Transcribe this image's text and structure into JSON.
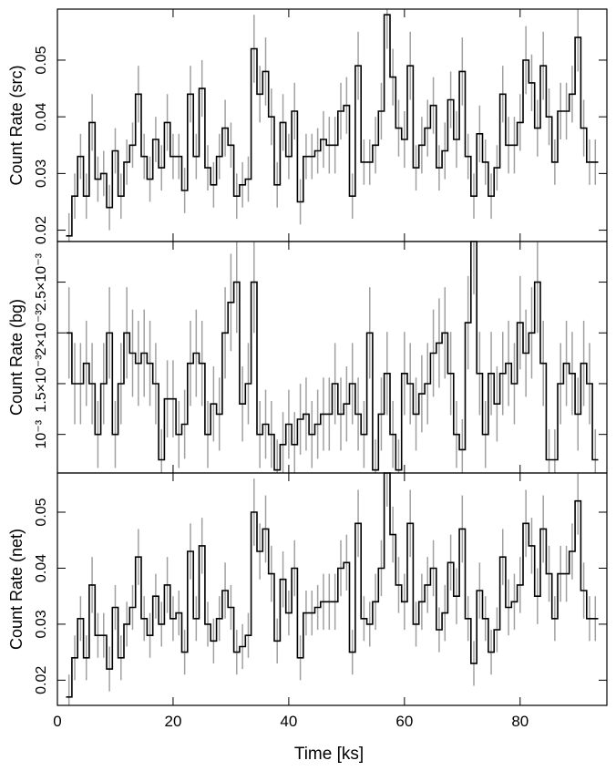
{
  "chart_data": [
    {
      "type": "line",
      "ylabel": "Count Rate (src)",
      "ylim": [
        0.018,
        0.059
      ],
      "yticks": [
        {
          "value": 0.02,
          "label": "0.02"
        },
        {
          "value": 0.03,
          "label": "0.03"
        },
        {
          "value": 0.04,
          "label": "0.04"
        },
        {
          "value": 0.05,
          "label": "0.05"
        }
      ],
      "bin_width": 1.0,
      "x": [
        2,
        3,
        4,
        5,
        6,
        7,
        8,
        9,
        10,
        11,
        12,
        13,
        14,
        15,
        16,
        17,
        18,
        19,
        20,
        21,
        22,
        23,
        24,
        25,
        26,
        27,
        28,
        29,
        30,
        31,
        32,
        33,
        34,
        35,
        36,
        37,
        38,
        39,
        40,
        41,
        42,
        43,
        44,
        45,
        46,
        47,
        48,
        49,
        50,
        51,
        52,
        53,
        54,
        55,
        56,
        57,
        58,
        59,
        60,
        61,
        62,
        63,
        64,
        65,
        66,
        67,
        68,
        69,
        70,
        71,
        72,
        73,
        74,
        75,
        76,
        77,
        78,
        79,
        80,
        81,
        82,
        83,
        84,
        85,
        86,
        87,
        88,
        89,
        90,
        91,
        92,
        93
      ],
      "values": [
        0.019,
        0.026,
        0.033,
        0.026,
        0.039,
        0.029,
        0.03,
        0.024,
        0.034,
        0.026,
        0.032,
        0.035,
        0.044,
        0.033,
        0.029,
        0.036,
        0.031,
        0.039,
        0.033,
        0.033,
        0.027,
        0.044,
        0.033,
        0.045,
        0.031,
        0.028,
        0.033,
        0.038,
        0.035,
        0.026,
        0.028,
        0.029,
        0.052,
        0.044,
        0.048,
        0.04,
        0.028,
        0.039,
        0.033,
        0.041,
        0.025,
        0.033,
        0.033,
        0.034,
        0.036,
        0.035,
        0.035,
        0.041,
        0.042,
        0.026,
        0.049,
        0.032,
        0.032,
        0.035,
        0.041,
        0.058,
        0.047,
        0.038,
        0.036,
        0.049,
        0.031,
        0.035,
        0.038,
        0.042,
        0.031,
        0.034,
        0.043,
        0.036,
        0.048,
        0.033,
        0.026,
        0.037,
        0.032,
        0.026,
        0.031,
        0.044,
        0.035,
        0.035,
        0.039,
        0.05,
        0.046,
        0.038,
        0.049,
        0.04,
        0.032,
        0.041,
        0.041,
        0.044,
        0.054,
        0.038,
        0.032,
        0.032
      ],
      "errors": [
        0.004,
        0.004,
        0.004,
        0.004,
        0.005,
        0.004,
        0.004,
        0.004,
        0.004,
        0.004,
        0.004,
        0.004,
        0.005,
        0.004,
        0.004,
        0.004,
        0.004,
        0.005,
        0.004,
        0.004,
        0.004,
        0.005,
        0.004,
        0.005,
        0.004,
        0.004,
        0.004,
        0.005,
        0.004,
        0.004,
        0.004,
        0.004,
        0.006,
        0.005,
        0.006,
        0.005,
        0.004,
        0.005,
        0.004,
        0.005,
        0.004,
        0.004,
        0.004,
        0.004,
        0.005,
        0.005,
        0.005,
        0.005,
        0.005,
        0.004,
        0.006,
        0.004,
        0.004,
        0.005,
        0.005,
        0.006,
        0.005,
        0.005,
        0.005,
        0.006,
        0.004,
        0.005,
        0.005,
        0.005,
        0.004,
        0.005,
        0.005,
        0.005,
        0.006,
        0.004,
        0.004,
        0.005,
        0.004,
        0.004,
        0.004,
        0.005,
        0.005,
        0.005,
        0.005,
        0.006,
        0.005,
        0.005,
        0.006,
        0.005,
        0.004,
        0.005,
        0.005,
        0.005,
        0.006,
        0.005,
        0.004,
        0.004
      ]
    },
    {
      "type": "line",
      "ylabel": "Count Rate (bg)",
      "ylim": [
        0.00062,
        0.0029
      ],
      "yticks": [
        {
          "value": 0.001,
          "label": "10⁻³"
        },
        {
          "value": 0.0015,
          "label": "1.5×10⁻³"
        },
        {
          "value": 0.002,
          "label": "2×10⁻³"
        },
        {
          "value": 0.0025,
          "label": "2.5×10⁻³"
        }
      ],
      "bin_width": 1.0,
      "x": [
        2,
        3,
        4,
        5,
        6,
        7,
        8,
        9,
        10,
        11,
        12,
        13,
        14,
        15,
        16,
        17,
        18,
        19,
        20,
        21,
        22,
        23,
        24,
        25,
        26,
        27,
        28,
        29,
        30,
        31,
        32,
        33,
        34,
        35,
        36,
        37,
        38,
        39,
        40,
        41,
        42,
        43,
        44,
        45,
        46,
        47,
        48,
        49,
        50,
        51,
        52,
        53,
        54,
        55,
        56,
        57,
        58,
        59,
        60,
        61,
        62,
        63,
        64,
        65,
        66,
        67,
        68,
        69,
        70,
        71,
        72,
        73,
        74,
        75,
        76,
        77,
        78,
        79,
        80,
        81,
        82,
        83,
        84,
        85,
        86,
        87,
        88,
        89,
        90,
        91,
        92,
        93
      ],
      "values": [
        0.002,
        0.0015,
        0.0015,
        0.0017,
        0.0015,
        0.001,
        0.0015,
        0.002,
        0.001,
        0.0015,
        0.002,
        0.0018,
        0.0017,
        0.0018,
        0.0017,
        0.0015,
        0.00075,
        0.00135,
        0.00135,
        0.001,
        0.0011,
        0.0017,
        0.0018,
        0.0017,
        0.001,
        0.0013,
        0.0012,
        0.002,
        0.0023,
        0.0025,
        0.0013,
        0.0015,
        0.0025,
        0.001,
        0.0011,
        0.001,
        0.00065,
        0.0009,
        0.0011,
        0.0009,
        0.00115,
        0.0012,
        0.001,
        0.0011,
        0.0012,
        0.0012,
        0.0015,
        0.0012,
        0.0013,
        0.0015,
        0.0012,
        0.001,
        0.002,
        0.00065,
        0.0012,
        0.0016,
        0.001,
        0.00065,
        0.0016,
        0.0015,
        0.0012,
        0.0014,
        0.0015,
        0.0018,
        0.0019,
        0.002,
        0.0016,
        0.001,
        0.00085,
        0.0021,
        0.0029,
        0.0016,
        0.001,
        0.0016,
        0.0013,
        0.0016,
        0.0017,
        0.0015,
        0.0021,
        0.0018,
        0.002,
        0.0025,
        0.0017,
        0.00075,
        0.00075,
        0.0015,
        0.0017,
        0.0016,
        0.0012,
        0.0017,
        0.0015,
        0.00075
      ],
      "errors": [
        0.00045,
        0.0004,
        0.0004,
        0.00042,
        0.0004,
        0.00033,
        0.0004,
        0.00045,
        0.00033,
        0.0004,
        0.00045,
        0.00043,
        0.00042,
        0.00043,
        0.00042,
        0.0004,
        0.0003,
        0.00038,
        0.00038,
        0.00033,
        0.00034,
        0.00042,
        0.00043,
        0.00042,
        0.00033,
        0.00037,
        0.00036,
        0.00045,
        0.00048,
        0.0005,
        0.00037,
        0.0004,
        0.0005,
        0.00033,
        0.00034,
        0.00033,
        0.0003,
        0.00032,
        0.00034,
        0.00032,
        0.00035,
        0.00036,
        0.00033,
        0.00034,
        0.00036,
        0.00036,
        0.0004,
        0.00036,
        0.00037,
        0.0004,
        0.00036,
        0.00033,
        0.00045,
        0.0003,
        0.00036,
        0.00041,
        0.00033,
        0.0003,
        0.00041,
        0.0004,
        0.00036,
        0.00038,
        0.0004,
        0.00043,
        0.00044,
        0.00045,
        0.00041,
        0.00033,
        0.0003,
        0.00046,
        0.00052,
        0.00041,
        0.00033,
        0.00041,
        0.00037,
        0.00041,
        0.00042,
        0.0004,
        0.00046,
        0.00043,
        0.00045,
        0.0005,
        0.00042,
        0.0003,
        0.0003,
        0.0004,
        0.00042,
        0.00041,
        0.00036,
        0.00042,
        0.0004,
        0.0003
      ]
    },
    {
      "type": "line",
      "ylabel": "Count Rate (net)",
      "xlabel": "Time [ks]",
      "ylim": [
        0.0155,
        0.057
      ],
      "yticks": [
        {
          "value": 0.02,
          "label": "0.02"
        },
        {
          "value": 0.03,
          "label": "0.03"
        },
        {
          "value": 0.04,
          "label": "0.04"
        },
        {
          "value": 0.05,
          "label": "0.05"
        }
      ],
      "xlim": [
        0,
        95
      ],
      "xticks": [
        {
          "value": 0,
          "label": "0"
        },
        {
          "value": 20,
          "label": "20"
        },
        {
          "value": 40,
          "label": "40"
        },
        {
          "value": 60,
          "label": "60"
        },
        {
          "value": 80,
          "label": "80"
        }
      ],
      "bin_width": 1.0,
      "x": [
        2,
        3,
        4,
        5,
        6,
        7,
        8,
        9,
        10,
        11,
        12,
        13,
        14,
        15,
        16,
        17,
        18,
        19,
        20,
        21,
        22,
        23,
        24,
        25,
        26,
        27,
        28,
        29,
        30,
        31,
        32,
        33,
        34,
        35,
        36,
        37,
        38,
        39,
        40,
        41,
        42,
        43,
        44,
        45,
        46,
        47,
        48,
        49,
        50,
        51,
        52,
        53,
        54,
        55,
        56,
        57,
        58,
        59,
        60,
        61,
        62,
        63,
        64,
        65,
        66,
        67,
        68,
        69,
        70,
        71,
        72,
        73,
        74,
        75,
        76,
        77,
        78,
        79,
        80,
        81,
        82,
        83,
        84,
        85,
        86,
        87,
        88,
        89,
        90,
        91,
        92,
        93
      ],
      "values": [
        0.017,
        0.024,
        0.031,
        0.024,
        0.037,
        0.028,
        0.028,
        0.022,
        0.033,
        0.024,
        0.03,
        0.033,
        0.042,
        0.031,
        0.028,
        0.035,
        0.03,
        0.037,
        0.031,
        0.032,
        0.025,
        0.043,
        0.031,
        0.044,
        0.03,
        0.027,
        0.031,
        0.036,
        0.033,
        0.025,
        0.026,
        0.028,
        0.05,
        0.043,
        0.047,
        0.039,
        0.027,
        0.038,
        0.032,
        0.04,
        0.024,
        0.032,
        0.032,
        0.033,
        0.034,
        0.034,
        0.034,
        0.04,
        0.041,
        0.025,
        0.048,
        0.031,
        0.03,
        0.034,
        0.04,
        0.057,
        0.046,
        0.037,
        0.034,
        0.048,
        0.03,
        0.034,
        0.037,
        0.04,
        0.029,
        0.032,
        0.041,
        0.035,
        0.047,
        0.031,
        0.023,
        0.036,
        0.031,
        0.025,
        0.029,
        0.042,
        0.033,
        0.034,
        0.037,
        0.048,
        0.044,
        0.035,
        0.047,
        0.039,
        0.031,
        0.039,
        0.039,
        0.043,
        0.052,
        0.036,
        0.031,
        0.031
      ],
      "errors": [
        0.004,
        0.004,
        0.004,
        0.004,
        0.005,
        0.004,
        0.004,
        0.004,
        0.004,
        0.004,
        0.004,
        0.004,
        0.005,
        0.004,
        0.004,
        0.004,
        0.004,
        0.005,
        0.004,
        0.004,
        0.004,
        0.005,
        0.004,
        0.005,
        0.004,
        0.004,
        0.004,
        0.005,
        0.004,
        0.004,
        0.004,
        0.004,
        0.006,
        0.005,
        0.006,
        0.005,
        0.004,
        0.005,
        0.004,
        0.005,
        0.004,
        0.004,
        0.004,
        0.004,
        0.005,
        0.005,
        0.005,
        0.005,
        0.005,
        0.004,
        0.006,
        0.004,
        0.004,
        0.005,
        0.005,
        0.006,
        0.005,
        0.005,
        0.005,
        0.006,
        0.004,
        0.005,
        0.005,
        0.005,
        0.004,
        0.005,
        0.005,
        0.005,
        0.006,
        0.004,
        0.004,
        0.005,
        0.004,
        0.004,
        0.004,
        0.005,
        0.005,
        0.005,
        0.005,
        0.006,
        0.005,
        0.005,
        0.006,
        0.005,
        0.004,
        0.005,
        0.005,
        0.005,
        0.006,
        0.005,
        0.004,
        0.004
      ]
    }
  ],
  "colors": {
    "step": "#000000",
    "errorbar": "#a0a0a0"
  }
}
